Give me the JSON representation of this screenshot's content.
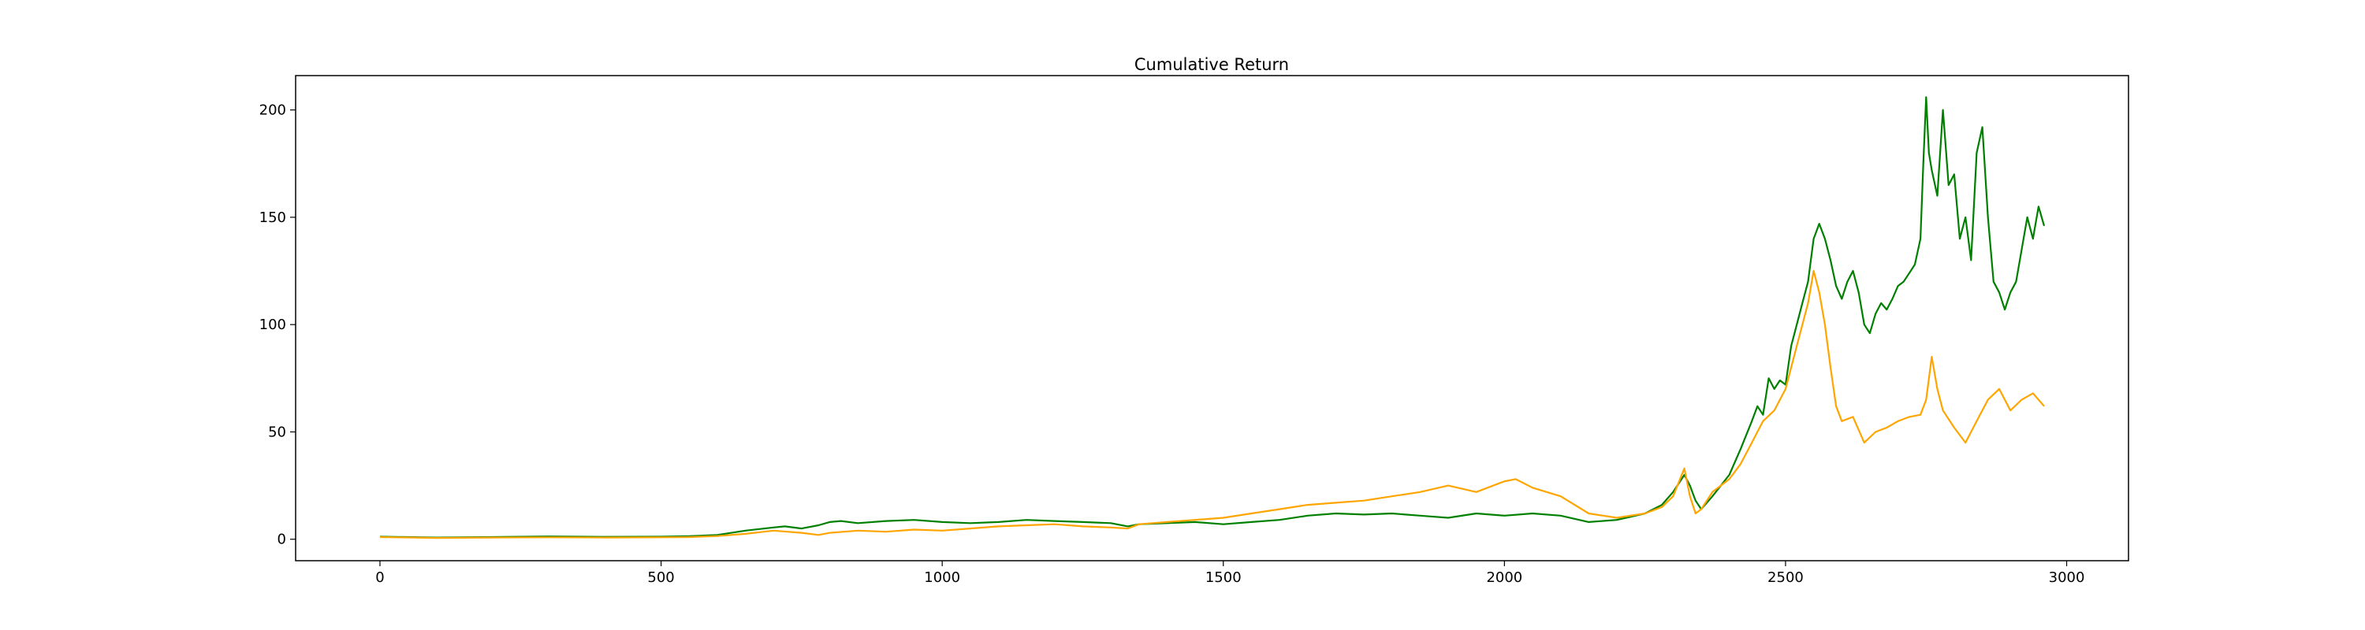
{
  "chart_data": {
    "type": "line",
    "title": "Cumulative Return",
    "xlabel": "",
    "ylabel": "",
    "xlim": [
      -150,
      3110
    ],
    "ylim": [
      -10,
      216
    ],
    "x_ticks": [
      0,
      500,
      1000,
      1500,
      2000,
      2500,
      3000
    ],
    "y_ticks": [
      0,
      50,
      100,
      150,
      200
    ],
    "grid": false,
    "legend": "none",
    "series": [
      {
        "color": "#008000",
        "x": [
          0,
          100,
          200,
          300,
          400,
          500,
          550,
          600,
          650,
          700,
          720,
          750,
          780,
          800,
          820,
          850,
          900,
          950,
          1000,
          1050,
          1100,
          1150,
          1200,
          1250,
          1300,
          1330,
          1350,
          1400,
          1450,
          1500,
          1550,
          1600,
          1650,
          1700,
          1750,
          1800,
          1850,
          1900,
          1950,
          2000,
          2050,
          2100,
          2150,
          2200,
          2250,
          2280,
          2300,
          2320,
          2330,
          2340,
          2350,
          2370,
          2400,
          2420,
          2440,
          2450,
          2460,
          2470,
          2480,
          2490,
          2500,
          2510,
          2520,
          2530,
          2540,
          2550,
          2560,
          2570,
          2580,
          2590,
          2600,
          2610,
          2620,
          2630,
          2640,
          2650,
          2660,
          2670,
          2680,
          2690,
          2700,
          2710,
          2720,
          2730,
          2740,
          2745,
          2750,
          2755,
          2760,
          2770,
          2780,
          2790,
          2800,
          2810,
          2820,
          2830,
          2840,
          2850,
          2860,
          2870,
          2880,
          2890,
          2900,
          2910,
          2920,
          2930,
          2940,
          2950,
          2960
        ],
        "y": [
          1.2,
          0.8,
          1.0,
          1.3,
          1.1,
          1.2,
          1.4,
          2.0,
          4.0,
          5.5,
          6.0,
          5.0,
          6.5,
          8.0,
          8.5,
          7.5,
          8.5,
          9.0,
          8.0,
          7.5,
          8.0,
          9.0,
          8.5,
          8.0,
          7.5,
          6.0,
          7.0,
          7.5,
          8.0,
          7.0,
          8.0,
          9.0,
          11.0,
          12.0,
          11.5,
          12.0,
          11.0,
          10.0,
          12.0,
          11.0,
          12.0,
          11.0,
          8.0,
          9.0,
          12.0,
          16.0,
          22.0,
          30.0,
          25.0,
          18.0,
          14.0,
          20.0,
          30.0,
          42.0,
          55.0,
          62.0,
          58.0,
          75.0,
          70.0,
          74.0,
          72.0,
          90.0,
          100.0,
          110.0,
          120.0,
          140.0,
          147.0,
          140.0,
          130.0,
          118.0,
          112.0,
          120.0,
          125.0,
          115.0,
          100.0,
          96.0,
          105.0,
          110.0,
          107.0,
          112.0,
          118.0,
          120.0,
          124.0,
          128.0,
          140.0,
          175.0,
          206.0,
          180.0,
          172.0,
          160.0,
          200.0,
          165.0,
          170.0,
          140.0,
          150.0,
          130.0,
          180.0,
          192.0,
          150.0,
          120.0,
          115.0,
          107.0,
          115.0,
          120.0,
          135.0,
          150.0,
          140.0,
          155.0,
          146.0
        ]
      },
      {
        "color": "#FFA500",
        "x": [
          0,
          100,
          200,
          300,
          400,
          500,
          550,
          600,
          650,
          700,
          750,
          780,
          800,
          850,
          900,
          950,
          1000,
          1050,
          1100,
          1150,
          1200,
          1250,
          1300,
          1330,
          1350,
          1400,
          1450,
          1500,
          1550,
          1600,
          1650,
          1700,
          1750,
          1800,
          1850,
          1900,
          1950,
          2000,
          2020,
          2050,
          2100,
          2150,
          2200,
          2250,
          2280,
          2300,
          2320,
          2330,
          2340,
          2350,
          2370,
          2400,
          2420,
          2440,
          2460,
          2480,
          2500,
          2520,
          2540,
          2550,
          2560,
          2570,
          2580,
          2590,
          2600,
          2620,
          2640,
          2660,
          2680,
          2700,
          2720,
          2740,
          2750,
          2760,
          2770,
          2780,
          2800,
          2820,
          2840,
          2860,
          2880,
          2900,
          2920,
          2940,
          2960
        ],
        "y": [
          1.0,
          0.6,
          0.8,
          0.9,
          0.8,
          0.9,
          1.0,
          1.5,
          2.5,
          4.0,
          3.0,
          2.0,
          3.0,
          4.0,
          3.5,
          4.5,
          4.0,
          5.0,
          6.0,
          6.5,
          7.0,
          6.0,
          5.5,
          5.0,
          7.0,
          8.0,
          9.0,
          10.0,
          12.0,
          14.0,
          16.0,
          17.0,
          18.0,
          20.0,
          22.0,
          25.0,
          22.0,
          27.0,
          28.0,
          24.0,
          20.0,
          12.0,
          10.0,
          12.0,
          15.0,
          20.0,
          33.0,
          20.0,
          12.0,
          14.0,
          22.0,
          28.0,
          35.0,
          45.0,
          55.0,
          60.0,
          70.0,
          90.0,
          110.0,
          125.0,
          115.0,
          100.0,
          80.0,
          62.0,
          55.0,
          57.0,
          45.0,
          50.0,
          52.0,
          55.0,
          57.0,
          58.0,
          65.0,
          85.0,
          70.0,
          60.0,
          52.0,
          45.0,
          55.0,
          65.0,
          70.0,
          60.0,
          65.0,
          68.0,
          62.0
        ]
      }
    ]
  }
}
